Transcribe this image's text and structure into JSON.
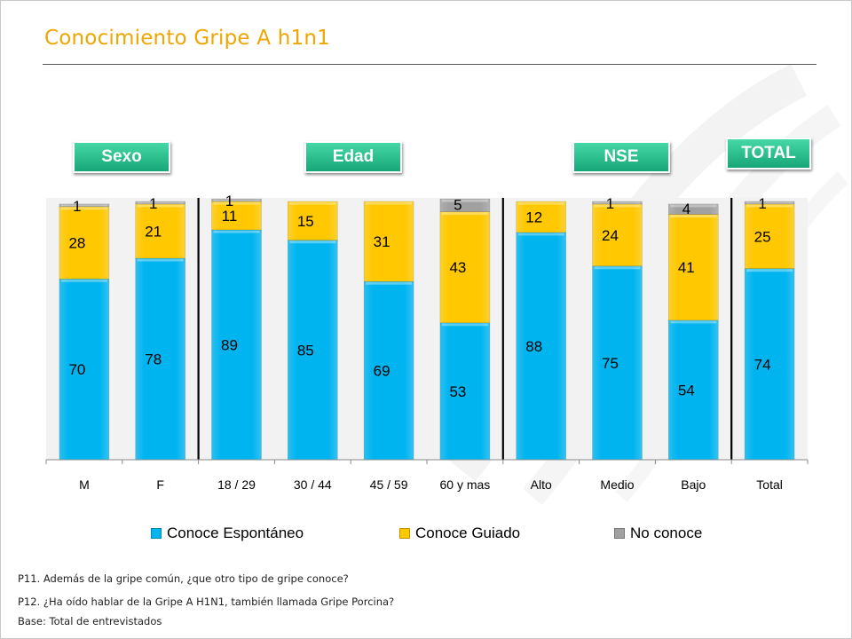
{
  "page": {
    "title": "Conocimiento Gripe A h1n1",
    "notes": [
      "P11. Además de la gripe común, ¿que otro tipo de gripe conoce?",
      "P12. ¿Ha oído hablar de la Gripe A H1N1, también llamada Gripe Porcina?",
      "Base: Total de entrevistados"
    ]
  },
  "groups": [
    "Sexo",
    "Edad",
    "NSE",
    "TOTAL"
  ],
  "colors": {
    "espontaneo": "#00b4f0",
    "guiado": "#ffc800",
    "no_conoce": "#a0a0a0",
    "badge": "#1db887",
    "title": "#f0a500"
  },
  "chart_data": {
    "type": "bar",
    "stacked": true,
    "categories": [
      "M",
      "F",
      "18 / 29",
      "30 / 44",
      "45 / 59",
      "60 y mas",
      "Alto",
      "Medio",
      "Bajo",
      "Total"
    ],
    "series": [
      {
        "name": "Conoce Espontáneo",
        "values": [
          70,
          78,
          89,
          85,
          69,
          53,
          88,
          75,
          54,
          74
        ]
      },
      {
        "name": "Conoce Guiado",
        "values": [
          28,
          21,
          11,
          15,
          31,
          43,
          12,
          24,
          41,
          25
        ]
      },
      {
        "name": "No conoce",
        "values": [
          1,
          1,
          1,
          null,
          null,
          5,
          null,
          1,
          4,
          1
        ]
      }
    ],
    "ylim": [
      0,
      100
    ],
    "legend": "bottom",
    "grid": false,
    "group_separators_after": [
      1,
      5,
      8
    ]
  }
}
